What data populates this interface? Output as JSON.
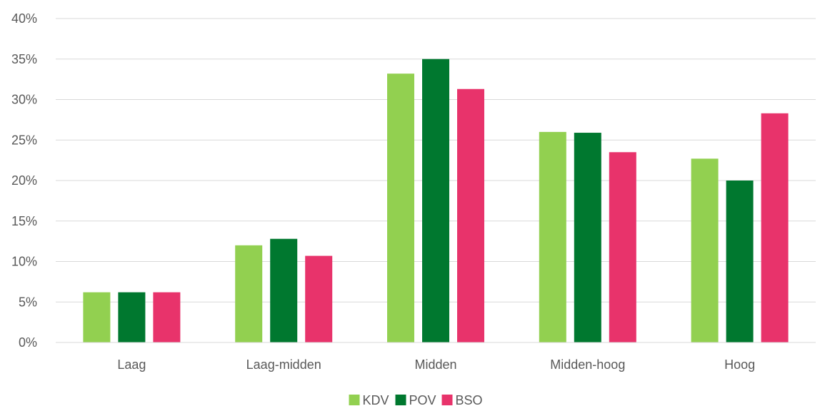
{
  "chart_data": {
    "type": "bar",
    "title": "",
    "xlabel": "",
    "ylabel": "",
    "categories": [
      "Laag",
      "Laag-midden",
      "Midden",
      "Midden-hoog",
      "Hoog"
    ],
    "series": [
      {
        "name": "KDV",
        "color": "#92d050",
        "values": [
          6.2,
          12.0,
          33.2,
          26.0,
          22.7
        ]
      },
      {
        "name": "POV",
        "color": "#00782f",
        "values": [
          6.2,
          12.8,
          35.0,
          25.9,
          20.0
        ]
      },
      {
        "name": "BSO",
        "color": "#e8336b",
        "values": [
          6.2,
          10.7,
          31.3,
          23.5,
          28.3
        ]
      }
    ],
    "ylim": [
      0,
      40
    ],
    "yticks": [
      "0%",
      "5%",
      "10%",
      "15%",
      "20%",
      "25%",
      "30%",
      "35%",
      "40%"
    ],
    "grid": true,
    "legend_position": "bottom"
  }
}
